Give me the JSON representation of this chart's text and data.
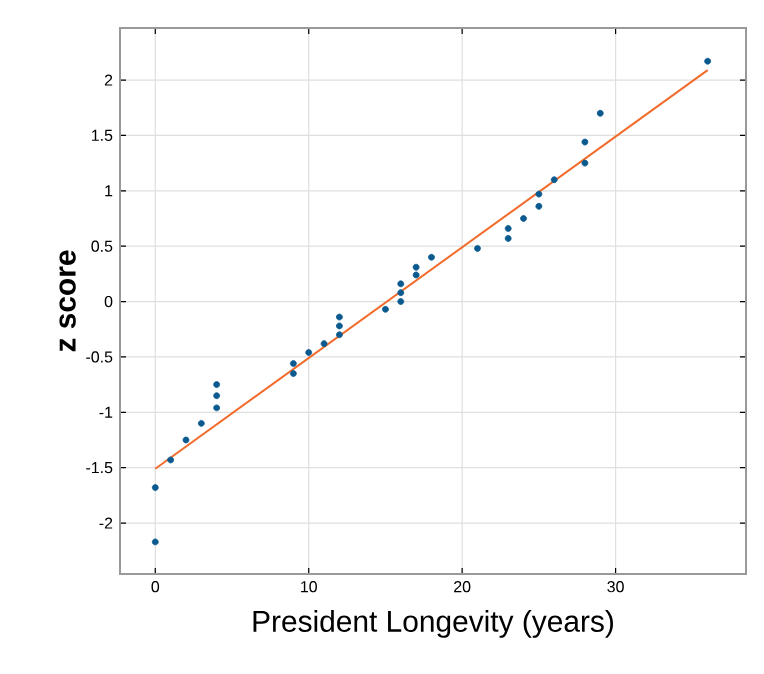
{
  "chart_data": {
    "type": "scatter",
    "xlabel": "President Longevity (years)",
    "ylabel": "z score",
    "xlim": [
      -2.3,
      38.5
    ],
    "ylim": [
      -2.46,
      2.47
    ],
    "xticks": [
      0,
      10,
      20,
      30
    ],
    "yticks": [
      -2,
      -1.5,
      -1,
      -0.5,
      0,
      0.5,
      1,
      1.5,
      2
    ],
    "grid": true,
    "series": [
      {
        "marker": "circle",
        "color": "#0b5a8f",
        "x": [
          0,
          0,
          1,
          2,
          3,
          4,
          4,
          4,
          9,
          9,
          10,
          11,
          12,
          12,
          12,
          15,
          16,
          16,
          16,
          17,
          17,
          18,
          21,
          23,
          23,
          24,
          25,
          25,
          26,
          28,
          28,
          29,
          36
        ],
        "values": [
          -1.68,
          -2.17,
          -1.43,
          -1.25,
          -1.1,
          -0.96,
          -0.85,
          -0.75,
          -0.65,
          -0.56,
          -0.46,
          -0.38,
          -0.3,
          -0.22,
          -0.14,
          -0.07,
          0.0,
          0.08,
          0.16,
          0.24,
          0.31,
          0.4,
          0.48,
          0.57,
          0.66,
          0.75,
          0.86,
          0.97,
          1.1,
          1.25,
          1.44,
          1.7,
          2.17
        ]
      },
      {
        "type": "line",
        "marker": "none",
        "color": "#f26b2a",
        "x": [
          0,
          36
        ],
        "values": [
          -1.51,
          2.09
        ]
      }
    ]
  }
}
